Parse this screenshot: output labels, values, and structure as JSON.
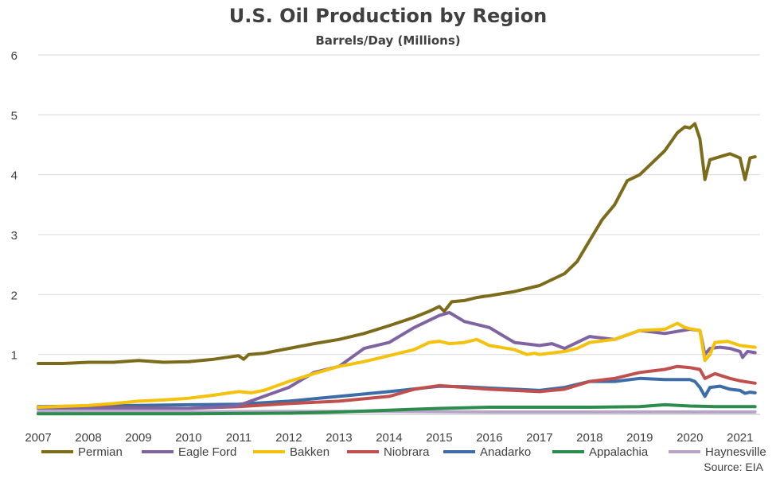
{
  "chart_data": {
    "type": "line",
    "title": "U.S. Oil Production by Region",
    "subtitle": "Barrels/Day (Millions)",
    "source": "Source: EIA",
    "ylim": [
      0,
      6
    ],
    "yticks": [
      "",
      "1",
      "2",
      "3",
      "4",
      "5",
      "6"
    ],
    "xlim": [
      2007,
      2021.4
    ],
    "xticks": [
      "2007",
      "2008",
      "2009",
      "2010",
      "2011",
      "2012",
      "2013",
      "2014",
      "2015",
      "2016",
      "2017",
      "2018",
      "2019",
      "2020",
      "2021"
    ],
    "grid": true,
    "legend_position": "bottom",
    "series": [
      {
        "name": "Permian",
        "color": "#7B6B1A",
        "x": [
          2007.0,
          2007.5,
          2008.0,
          2008.5,
          2009.0,
          2009.5,
          2010.0,
          2010.5,
          2011.0,
          2011.1,
          2011.2,
          2011.5,
          2012.0,
          2012.5,
          2013.0,
          2013.5,
          2014.0,
          2014.5,
          2014.8,
          2015.0,
          2015.1,
          2015.25,
          2015.5,
          2015.75,
          2015.9,
          2016.0,
          2016.5,
          2017.0,
          2017.5,
          2017.75,
          2018.0,
          2018.25,
          2018.5,
          2018.75,
          2019.0,
          2019.25,
          2019.5,
          2019.75,
          2019.9,
          2020.0,
          2020.1,
          2020.2,
          2020.3,
          2020.4,
          2020.6,
          2020.8,
          2021.0,
          2021.1,
          2021.2,
          2021.3
        ],
        "values": [
          0.85,
          0.85,
          0.87,
          0.87,
          0.9,
          0.87,
          0.88,
          0.92,
          0.98,
          0.92,
          1.0,
          1.02,
          1.1,
          1.18,
          1.25,
          1.35,
          1.48,
          1.62,
          1.72,
          1.8,
          1.72,
          1.88,
          1.9,
          1.95,
          1.97,
          1.98,
          2.05,
          2.15,
          2.35,
          2.55,
          2.9,
          3.25,
          3.5,
          3.9,
          4.0,
          4.2,
          4.4,
          4.7,
          4.8,
          4.78,
          4.85,
          4.6,
          3.92,
          4.25,
          4.3,
          4.35,
          4.28,
          3.92,
          4.28,
          4.3
        ]
      },
      {
        "name": "Eagle Ford",
        "color": "#8064A2",
        "x": [
          2007.0,
          2009.0,
          2010.0,
          2010.5,
          2011.0,
          2011.5,
          2012.0,
          2012.5,
          2013.0,
          2013.5,
          2014.0,
          2014.5,
          2015.0,
          2015.2,
          2015.5,
          2016.0,
          2016.3,
          2016.5,
          2017.0,
          2017.25,
          2017.5,
          2017.75,
          2018.0,
          2018.5,
          2019.0,
          2019.5,
          2020.0,
          2020.2,
          2020.3,
          2020.4,
          2020.6,
          2020.8,
          2021.0,
          2021.05,
          2021.15,
          2021.3
        ],
        "values": [
          0.1,
          0.1,
          0.1,
          0.12,
          0.15,
          0.3,
          0.45,
          0.7,
          0.8,
          1.1,
          1.2,
          1.45,
          1.65,
          1.7,
          1.55,
          1.45,
          1.3,
          1.2,
          1.15,
          1.18,
          1.1,
          1.2,
          1.3,
          1.25,
          1.4,
          1.35,
          1.42,
          1.4,
          1.0,
          1.1,
          1.12,
          1.1,
          1.05,
          0.95,
          1.05,
          1.03
        ]
      },
      {
        "name": "Bakken",
        "color": "#F4C20D",
        "x": [
          2007.0,
          2008.0,
          2008.5,
          2009.0,
          2009.5,
          2010.0,
          2010.5,
          2011.0,
          2011.25,
          2011.5,
          2012.0,
          2012.5,
          2013.0,
          2013.5,
          2014.0,
          2014.5,
          2014.8,
          2015.0,
          2015.2,
          2015.5,
          2015.75,
          2016.0,
          2016.5,
          2016.75,
          2016.9,
          2017.0,
          2017.5,
          2017.75,
          2018.0,
          2018.5,
          2019.0,
          2019.5,
          2019.75,
          2019.9,
          2020.0,
          2020.2,
          2020.3,
          2020.4,
          2020.5,
          2020.75,
          2021.0,
          2021.3
        ],
        "values": [
          0.12,
          0.15,
          0.18,
          0.22,
          0.24,
          0.27,
          0.32,
          0.38,
          0.36,
          0.4,
          0.55,
          0.68,
          0.8,
          0.88,
          0.98,
          1.08,
          1.2,
          1.22,
          1.18,
          1.2,
          1.25,
          1.15,
          1.08,
          1.0,
          1.02,
          1.0,
          1.05,
          1.1,
          1.2,
          1.25,
          1.4,
          1.42,
          1.52,
          1.45,
          1.43,
          1.4,
          0.9,
          1.0,
          1.2,
          1.22,
          1.15,
          1.12
        ]
      },
      {
        "name": "Niobrara",
        "color": "#C0504D",
        "x": [
          2007.0,
          2010.0,
          2011.0,
          2012.0,
          2013.0,
          2014.0,
          2014.5,
          2015.0,
          2015.5,
          2016.0,
          2016.5,
          2017.0,
          2017.5,
          2018.0,
          2018.5,
          2019.0,
          2019.5,
          2019.75,
          2020.0,
          2020.2,
          2020.3,
          2020.5,
          2020.8,
          2021.0,
          2021.3
        ],
        "values": [
          0.12,
          0.1,
          0.13,
          0.18,
          0.22,
          0.3,
          0.42,
          0.48,
          0.45,
          0.42,
          0.4,
          0.38,
          0.42,
          0.55,
          0.6,
          0.7,
          0.75,
          0.8,
          0.78,
          0.75,
          0.6,
          0.68,
          0.6,
          0.56,
          0.52
        ]
      },
      {
        "name": "Anadarko",
        "color": "#3C6DA8",
        "x": [
          2007.0,
          2008.0,
          2009.0,
          2010.0,
          2011.0,
          2012.0,
          2013.0,
          2014.0,
          2015.0,
          2015.5,
          2016.0,
          2016.5,
          2017.0,
          2017.5,
          2018.0,
          2018.5,
          2019.0,
          2019.5,
          2019.75,
          2020.0,
          2020.1,
          2020.2,
          2020.3,
          2020.4,
          2020.6,
          2020.8,
          2021.0,
          2021.1,
          2021.2,
          2021.3
        ],
        "values": [
          0.13,
          0.14,
          0.15,
          0.16,
          0.17,
          0.22,
          0.3,
          0.38,
          0.47,
          0.46,
          0.44,
          0.42,
          0.4,
          0.45,
          0.55,
          0.55,
          0.6,
          0.58,
          0.58,
          0.58,
          0.55,
          0.45,
          0.3,
          0.45,
          0.47,
          0.42,
          0.4,
          0.35,
          0.37,
          0.36
        ]
      },
      {
        "name": "Appalachia",
        "color": "#2E8B4E",
        "x": [
          2007.0,
          2010.0,
          2012.0,
          2013.0,
          2014.0,
          2015.0,
          2016.0,
          2017.0,
          2018.0,
          2019.0,
          2019.5,
          2020.0,
          2020.5,
          2021.3
        ],
        "values": [
          0.01,
          0.01,
          0.02,
          0.04,
          0.07,
          0.1,
          0.12,
          0.12,
          0.12,
          0.13,
          0.16,
          0.14,
          0.13,
          0.13
        ]
      },
      {
        "name": "Haynesville",
        "color": "#B7A5C9",
        "x": [
          2007.0,
          2010.0,
          2012.0,
          2014.0,
          2016.0,
          2018.0,
          2020.0,
          2021.3
        ],
        "values": [
          0.04,
          0.04,
          0.05,
          0.05,
          0.04,
          0.04,
          0.04,
          0.04
        ]
      }
    ]
  }
}
